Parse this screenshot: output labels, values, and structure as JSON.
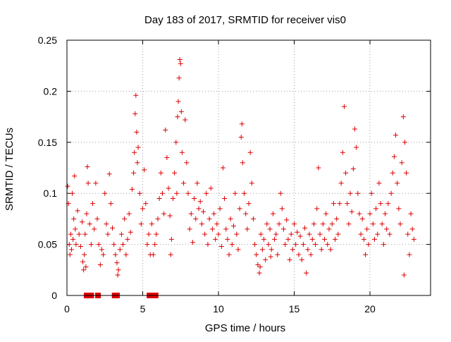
{
  "chart_data": {
    "type": "scatter",
    "title": "Day 183 of 2017, SRMTID for receiver vis0",
    "xlabel": "GPS time / hours",
    "ylabel": "SRMTID / TECUs",
    "xlim": [
      0,
      24
    ],
    "ylim": [
      0,
      0.25
    ],
    "x_ticks": [
      0,
      5,
      10,
      15,
      20
    ],
    "x_tick_labels": [
      "0",
      "5",
      "10",
      "15",
      "20"
    ],
    "y_ticks": [
      0,
      0.05,
      0.1,
      0.15,
      0.2,
      0.25
    ],
    "y_tick_labels": [
      "0",
      "0.05",
      "0.1",
      "0.15",
      "0.2",
      "0.25"
    ],
    "grid": true,
    "marker": "plus",
    "color": "#dd0000",
    "series": [
      {
        "name": "SRMTID",
        "points": [
          [
            0.05,
            0.107
          ],
          [
            0.1,
            0.09
          ],
          [
            0.15,
            0.05
          ],
          [
            0.2,
            0.04
          ],
          [
            0.25,
            0.06
          ],
          [
            0.3,
            0.045
          ],
          [
            0.35,
            0.1
          ],
          [
            0.4,
            0.055
          ],
          [
            0.45,
            0.075
          ],
          [
            0.5,
            0.117
          ],
          [
            0.55,
            0.065
          ],
          [
            0.6,
            0.05
          ],
          [
            0.7,
            0.083
          ],
          [
            0.8,
            0.06
          ],
          [
            0.9,
            0.048
          ],
          [
            1.0,
            0.072
          ],
          [
            1.05,
            0.033
          ],
          [
            1.1,
            0.025
          ],
          [
            1.15,
            0.04
          ],
          [
            1.2,
            0.06
          ],
          [
            1.3,
            0.08
          ],
          [
            1.35,
            0.126
          ],
          [
            1.4,
            0.11
          ],
          [
            1.5,
            0.07
          ],
          [
            1.6,
            0.05
          ],
          [
            1.7,
            0.09
          ],
          [
            1.8,
            0.065
          ],
          [
            1.9,
            0.11
          ],
          [
            2.0,
            0.075
          ],
          [
            2.1,
            0.05
          ],
          [
            2.2,
            0.03
          ],
          [
            2.3,
            0.045
          ],
          [
            2.4,
            0.04
          ],
          [
            2.5,
            0.1
          ],
          [
            2.6,
            0.07
          ],
          [
            2.7,
            0.06
          ],
          [
            2.8,
            0.119
          ],
          [
            2.9,
            0.09
          ],
          [
            3.0,
            0.066
          ],
          [
            3.1,
            0.05
          ],
          [
            3.2,
            0.04
          ],
          [
            3.3,
            0.032
          ],
          [
            3.4,
            0.025
          ],
          [
            3.5,
            0.045
          ],
          [
            3.6,
            0.06
          ],
          [
            3.7,
            0.05
          ],
          [
            3.8,
            0.075
          ],
          [
            3.9,
            0.04
          ],
          [
            4.0,
            0.055
          ],
          [
            4.1,
            0.08
          ],
          [
            4.2,
            0.062
          ],
          [
            4.3,
            0.104
          ],
          [
            4.4,
            0.12
          ],
          [
            4.45,
            0.14
          ],
          [
            4.5,
            0.178
          ],
          [
            4.55,
            0.196
          ],
          [
            4.6,
            0.16
          ],
          [
            4.65,
            0.13
          ],
          [
            4.7,
            0.145
          ],
          [
            4.8,
            0.1
          ],
          [
            4.9,
            0.07
          ],
          [
            5.0,
            0.085
          ],
          [
            5.1,
            0.123
          ],
          [
            5.2,
            0.09
          ],
          [
            5.3,
            0.05
          ],
          [
            5.4,
            0.06
          ],
          [
            5.5,
            0.04
          ],
          [
            5.6,
            0.07
          ],
          [
            5.7,
            0.04
          ],
          [
            5.8,
            0.05
          ],
          [
            5.9,
            0.06
          ],
          [
            6.0,
            0.075
          ],
          [
            6.1,
            0.095
          ],
          [
            6.2,
            0.12
          ],
          [
            6.3,
            0.1
          ],
          [
            6.4,
            0.08
          ],
          [
            6.5,
            0.162
          ],
          [
            6.6,
            0.135
          ],
          [
            6.7,
            0.105
          ],
          [
            6.8,
            0.078
          ],
          [
            6.9,
            0.055
          ],
          [
            7.0,
            0.095
          ],
          [
            7.1,
            0.12
          ],
          [
            7.2,
            0.15
          ],
          [
            7.3,
            0.175
          ],
          [
            7.35,
            0.19
          ],
          [
            7.4,
            0.213
          ],
          [
            7.45,
            0.231
          ],
          [
            7.5,
            0.227
          ],
          [
            7.55,
            0.18
          ],
          [
            7.6,
            0.14
          ],
          [
            7.7,
            0.11
          ],
          [
            7.8,
            0.172
          ],
          [
            7.9,
            0.13
          ],
          [
            8.0,
            0.1
          ],
          [
            8.1,
            0.065
          ],
          [
            8.2,
            0.08
          ],
          [
            8.3,
            0.052
          ],
          [
            8.4,
            0.095
          ],
          [
            8.5,
            0.075
          ],
          [
            8.6,
            0.11
          ],
          [
            8.7,
            0.085
          ],
          [
            8.8,
            0.092
          ],
          [
            8.9,
            0.07
          ],
          [
            9.0,
            0.082
          ],
          [
            9.1,
            0.06
          ],
          [
            9.2,
            0.1
          ],
          [
            9.3,
            0.05
          ],
          [
            9.4,
            0.075
          ],
          [
            9.5,
            0.105
          ],
          [
            9.6,
            0.065
          ],
          [
            9.7,
            0.08
          ],
          [
            9.8,
            0.055
          ],
          [
            9.9,
            0.07
          ],
          [
            10.0,
            0.06
          ],
          [
            10.1,
            0.085
          ],
          [
            10.2,
            0.048
          ],
          [
            10.3,
            0.125
          ],
          [
            10.4,
            0.095
          ],
          [
            10.5,
            0.065
          ],
          [
            10.6,
            0.055
          ],
          [
            10.7,
            0.04
          ],
          [
            10.8,
            0.075
          ],
          [
            10.9,
            0.05
          ],
          [
            11.0,
            0.068
          ],
          [
            11.1,
            0.1
          ],
          [
            11.2,
            0.06
          ],
          [
            11.3,
            0.045
          ],
          [
            11.4,
            0.085
          ],
          [
            11.5,
            0.155
          ],
          [
            11.55,
            0.168
          ],
          [
            11.6,
            0.13
          ],
          [
            11.7,
            0.1
          ],
          [
            11.8,
            0.08
          ],
          [
            11.9,
            0.065
          ],
          [
            12.0,
            0.09
          ],
          [
            12.1,
            0.14
          ],
          [
            12.2,
            0.11
          ],
          [
            12.3,
            0.075
          ],
          [
            12.4,
            0.05
          ],
          [
            12.5,
            0.04
          ],
          [
            12.6,
            0.03
          ],
          [
            12.7,
            0.022
          ],
          [
            12.8,
            0.06
          ],
          [
            12.9,
            0.045
          ],
          [
            13.0,
            0.055
          ],
          [
            13.1,
            0.035
          ],
          [
            13.2,
            0.07
          ],
          [
            13.3,
            0.05
          ],
          [
            13.4,
            0.065
          ],
          [
            13.5,
            0.045
          ],
          [
            13.6,
            0.08
          ],
          [
            13.7,
            0.055
          ],
          [
            13.8,
            0.06
          ],
          [
            13.9,
            0.04
          ],
          [
            14.0,
            0.07
          ],
          [
            14.1,
            0.1
          ],
          [
            14.2,
            0.085
          ],
          [
            14.3,
            0.065
          ],
          [
            14.4,
            0.05
          ],
          [
            14.5,
            0.074
          ],
          [
            14.6,
            0.055
          ],
          [
            14.7,
            0.035
          ],
          [
            14.8,
            0.06
          ],
          [
            14.9,
            0.045
          ],
          [
            15.0,
            0.07
          ],
          [
            15.1,
            0.05
          ],
          [
            15.2,
            0.062
          ],
          [
            15.3,
            0.04
          ],
          [
            15.4,
            0.058
          ],
          [
            15.5,
            0.035
          ],
          [
            15.6,
            0.05
          ],
          [
            15.7,
            0.066
          ],
          [
            15.8,
            0.022
          ],
          [
            15.9,
            0.045
          ],
          [
            16.0,
            0.06
          ],
          [
            16.1,
            0.04
          ],
          [
            16.2,
            0.055
          ],
          [
            16.3,
            0.07
          ],
          [
            16.4,
            0.05
          ],
          [
            16.5,
            0.085
          ],
          [
            16.6,
            0.125
          ],
          [
            16.7,
            0.06
          ],
          [
            16.8,
            0.045
          ],
          [
            16.9,
            0.07
          ],
          [
            17.0,
            0.055
          ],
          [
            17.1,
            0.08
          ],
          [
            17.2,
            0.05
          ],
          [
            17.3,
            0.065
          ],
          [
            17.4,
            0.045
          ],
          [
            17.5,
            0.07
          ],
          [
            17.6,
            0.09
          ],
          [
            17.7,
            0.055
          ],
          [
            17.8,
            0.075
          ],
          [
            17.9,
            0.06
          ],
          [
            18.0,
            0.09
          ],
          [
            18.1,
            0.11
          ],
          [
            18.2,
            0.14
          ],
          [
            18.3,
            0.185
          ],
          [
            18.4,
            0.12
          ],
          [
            18.5,
            0.09
          ],
          [
            18.6,
            0.07
          ],
          [
            18.7,
            0.1
          ],
          [
            18.8,
            0.082
          ],
          [
            18.9,
            0.124
          ],
          [
            19.0,
            0.163
          ],
          [
            19.1,
            0.145
          ],
          [
            19.2,
            0.1
          ],
          [
            19.3,
            0.08
          ],
          [
            19.4,
            0.06
          ],
          [
            19.5,
            0.075
          ],
          [
            19.6,
            0.055
          ],
          [
            19.7,
            0.04
          ],
          [
            19.8,
            0.065
          ],
          [
            19.9,
            0.05
          ],
          [
            20.0,
            0.08
          ],
          [
            20.1,
            0.1
          ],
          [
            20.2,
            0.07
          ],
          [
            20.3,
            0.055
          ],
          [
            20.4,
            0.085
          ],
          [
            20.5,
            0.06
          ],
          [
            20.6,
            0.11
          ],
          [
            20.7,
            0.09
          ],
          [
            20.8,
            0.07
          ],
          [
            20.9,
            0.05
          ],
          [
            21.0,
            0.08
          ],
          [
            21.1,
            0.065
          ],
          [
            21.2,
            0.09
          ],
          [
            21.3,
            0.06
          ],
          [
            21.4,
            0.1
          ],
          [
            21.5,
            0.12
          ],
          [
            21.6,
            0.136
          ],
          [
            21.7,
            0.157
          ],
          [
            21.8,
            0.11
          ],
          [
            21.9,
            0.085
          ],
          [
            22.0,
            0.07
          ],
          [
            22.1,
            0.13
          ],
          [
            22.2,
            0.175
          ],
          [
            22.3,
            0.15
          ],
          [
            22.4,
            0.12
          ],
          [
            22.5,
            0.06
          ],
          [
            22.6,
            0.04
          ],
          [
            22.7,
            0.08
          ],
          [
            22.8,
            0.065
          ],
          [
            22.9,
            0.055
          ],
          [
            22.25,
            0.02
          ],
          [
            1.25,
            0.028
          ],
          [
            3.35,
            0.02
          ],
          [
            6.85,
            0.04
          ],
          [
            7.25,
            0.1
          ],
          [
            13.45,
            0.038
          ],
          [
            12.75,
            0.028
          ]
        ]
      },
      {
        "name": "data gaps",
        "marker": "square",
        "points": [
          [
            1.3,
            0
          ],
          [
            1.45,
            0
          ],
          [
            1.6,
            0
          ],
          [
            2.05,
            0
          ],
          [
            3.15,
            0
          ],
          [
            3.3,
            0
          ],
          [
            5.45,
            0
          ],
          [
            5.6,
            0
          ],
          [
            5.75,
            0
          ],
          [
            5.85,
            0
          ]
        ]
      }
    ]
  }
}
